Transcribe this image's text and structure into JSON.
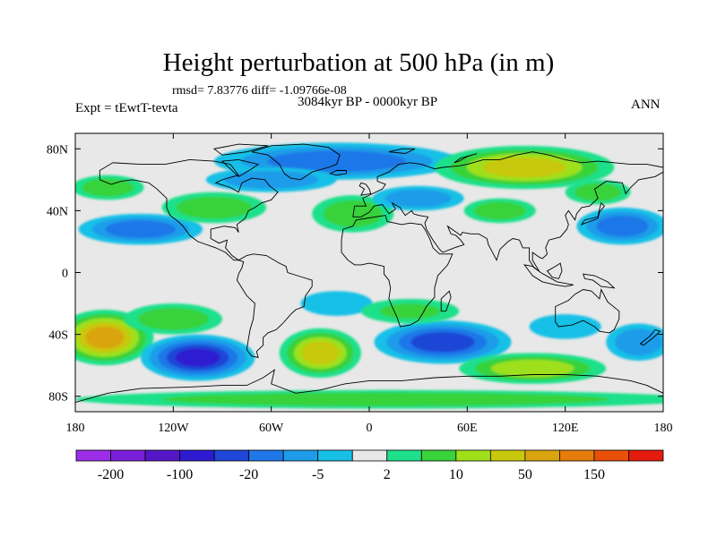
{
  "title": "Height perturbation at 500 hPa (in m)",
  "stats_text": "rmsd= 7.83776 diff= -1.09766e-08",
  "period": "3084kyr BP - 0000kyr BP",
  "experiment": "Expt = tEwtT-tevta",
  "season": "ANN",
  "colors": {
    "levels": [
      "#9d2ee8",
      "#7a1fd9",
      "#5516c8",
      "#2d1bd0",
      "#1f46d6",
      "#1f77e8",
      "#1e9ce9",
      "#18c0e6",
      "#e8e8e8",
      "#1ee08a",
      "#38d23a",
      "#9fe01b",
      "#c8c80e",
      "#d9a40d",
      "#e67c0c",
      "#e8500a",
      "#e41b0d"
    ],
    "land": "#000000",
    "frame": "#000000"
  },
  "chart_data": {
    "type": "heatmap",
    "projection": "cylindrical-equidistant",
    "x_range": [
      -180,
      180
    ],
    "y_range": [
      -90,
      90
    ],
    "x_ticks": [
      {
        "value": -180,
        "label": "180"
      },
      {
        "value": -120,
        "label": "120W"
      },
      {
        "value": -60,
        "label": "60W"
      },
      {
        "value": 0,
        "label": "0"
      },
      {
        "value": 60,
        "label": "60E"
      },
      {
        "value": 120,
        "label": "120E"
      },
      {
        "value": 180,
        "label": "180"
      }
    ],
    "y_ticks": [
      {
        "value": 80,
        "label": "80N"
      },
      {
        "value": 40,
        "label": "40N"
      },
      {
        "value": 0,
        "label": "0"
      },
      {
        "value": -40,
        "label": "40S"
      },
      {
        "value": -80,
        "label": "80S"
      }
    ],
    "colorbar": {
      "boundaries": [
        -200,
        -150,
        -100,
        -50,
        -20,
        -10,
        -5,
        -2,
        2,
        5,
        10,
        20,
        50,
        100,
        150,
        200
      ],
      "labels": [
        "-200",
        "-100",
        "-20",
        "-5",
        "2",
        "10",
        "50",
        "150"
      ]
    },
    "features": [
      {
        "lon": -140,
        "lat": 28,
        "rlon": 38,
        "rlat": 10,
        "value": -12
      },
      {
        "lon": -95,
        "lat": 42,
        "rlon": 32,
        "rlat": 10,
        "value": 8
      },
      {
        "lon": -160,
        "lat": 55,
        "rlon": 22,
        "rlat": 8,
        "value": 6
      },
      {
        "lon": -20,
        "lat": 72,
        "rlon": 75,
        "rlat": 12,
        "value": -20
      },
      {
        "lon": -60,
        "lat": 60,
        "rlon": 40,
        "rlat": 8,
        "value": -8
      },
      {
        "lon": -10,
        "lat": 38,
        "rlon": 25,
        "rlat": 12,
        "value": 7
      },
      {
        "lon": 30,
        "lat": 48,
        "rlon": 28,
        "rlat": 8,
        "value": -6
      },
      {
        "lon": 95,
        "lat": 68,
        "rlon": 55,
        "rlat": 14,
        "value": 22
      },
      {
        "lon": 80,
        "lat": 40,
        "rlon": 22,
        "rlat": 8,
        "value": 6
      },
      {
        "lon": 155,
        "lat": 30,
        "rlon": 28,
        "rlat": 12,
        "value": -15
      },
      {
        "lon": 140,
        "lat": 52,
        "rlon": 20,
        "rlat": 8,
        "value": 6
      },
      {
        "lon": -162,
        "lat": -42,
        "rlon": 30,
        "rlat": 18,
        "value": 55
      },
      {
        "lon": -105,
        "lat": -55,
        "rlon": 35,
        "rlat": 15,
        "value": -60
      },
      {
        "lon": -120,
        "lat": -30,
        "rlon": 30,
        "rlat": 10,
        "value": 6
      },
      {
        "lon": -30,
        "lat": -52,
        "rlon": 25,
        "rlat": 16,
        "value": 35
      },
      {
        "lon": -20,
        "lat": -20,
        "rlon": 22,
        "rlat": 8,
        "value": -4
      },
      {
        "lon": 45,
        "lat": -45,
        "rlon": 42,
        "rlat": 14,
        "value": -45
      },
      {
        "lon": 25,
        "lat": -25,
        "rlon": 30,
        "rlat": 8,
        "value": 5
      },
      {
        "lon": 100,
        "lat": -62,
        "rlon": 45,
        "rlat": 10,
        "value": 18
      },
      {
        "lon": 120,
        "lat": -35,
        "rlon": 22,
        "rlat": 8,
        "value": -5
      },
      {
        "lon": 165,
        "lat": -45,
        "rlon": 20,
        "rlat": 12,
        "value": -10
      },
      {
        "lon": 10,
        "lat": -82,
        "rlon": 190,
        "rlat": 6,
        "value": 6
      }
    ]
  }
}
